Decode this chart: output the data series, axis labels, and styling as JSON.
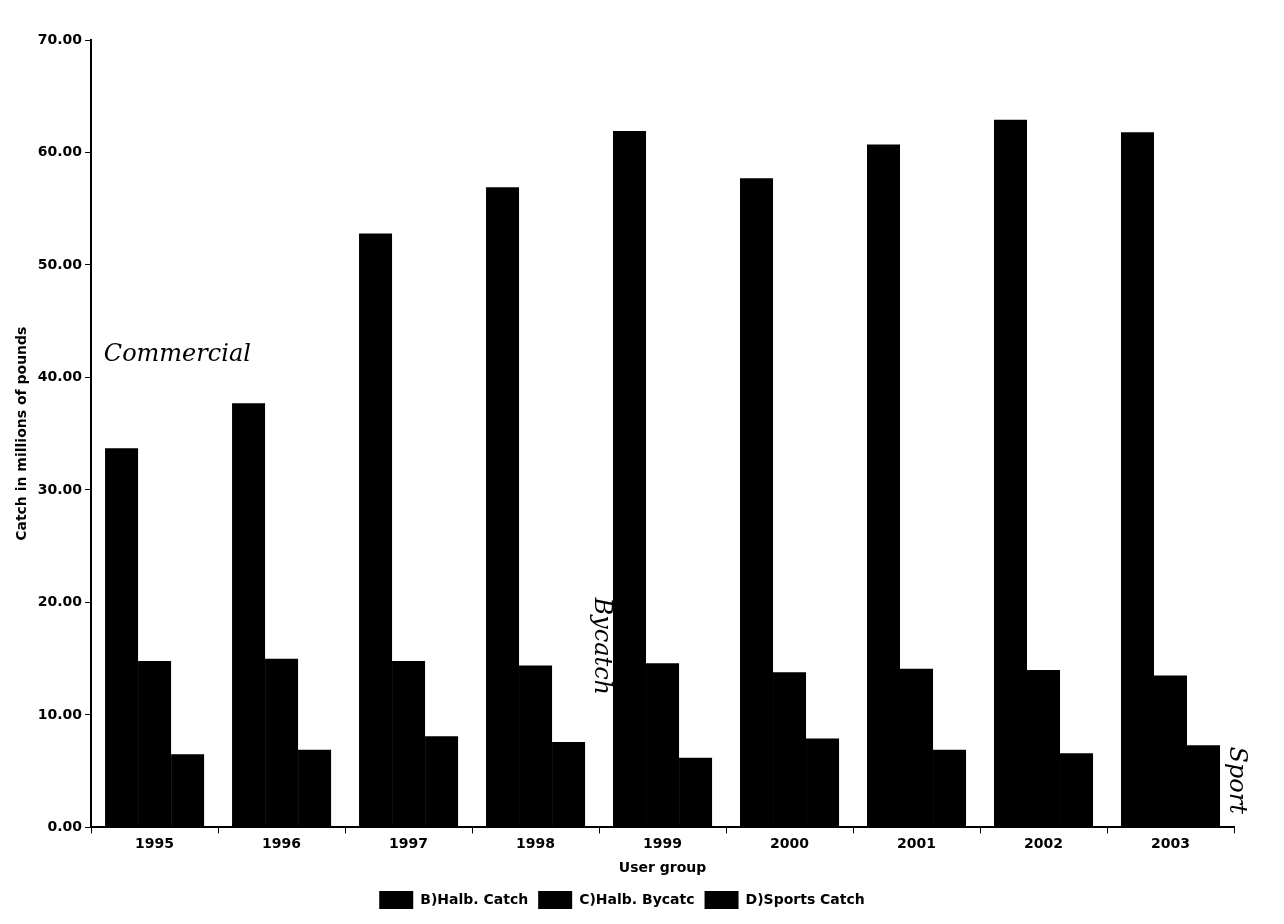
{
  "chart_data": {
    "type": "bar",
    "xlabel": "User group",
    "ylabel": "Catch in millions of pounds",
    "categories": [
      "1995",
      "1996",
      "1997",
      "1998",
      "1999",
      "2000",
      "2001",
      "2002",
      "2003"
    ],
    "series": [
      {
        "name": "B)Halb. Catch",
        "color": "#000000",
        "values": [
          33.7,
          37.7,
          52.8,
          56.9,
          61.9,
          57.7,
          60.7,
          62.9,
          61.8
        ]
      },
      {
        "name": "C)Halb. Bycatc",
        "color": "#000000",
        "values": [
          14.8,
          15.0,
          14.8,
          14.4,
          14.6,
          13.8,
          14.1,
          14.0,
          13.5
        ]
      },
      {
        "name": "D)Sports Catch",
        "color": "#000000",
        "values": [
          6.5,
          6.9,
          8.1,
          7.6,
          6.2,
          7.9,
          6.9,
          6.6,
          7.3
        ]
      }
    ],
    "ylim": [
      0,
      70
    ],
    "yticks": [
      {
        "value": 0,
        "label": "0.00"
      },
      {
        "value": 10,
        "label": "10.00"
      },
      {
        "value": 20,
        "label": "20.00"
      },
      {
        "value": 30,
        "label": "30.00"
      },
      {
        "value": 40,
        "label": "40.00"
      },
      {
        "value": 50,
        "label": "50.00"
      },
      {
        "value": 60,
        "label": "60.00"
      },
      {
        "value": 70,
        "label": "70.00"
      }
    ],
    "grid": false,
    "legend": "bottom",
    "annotations": [
      "Commercial",
      "Bycatch",
      "Sport"
    ]
  }
}
